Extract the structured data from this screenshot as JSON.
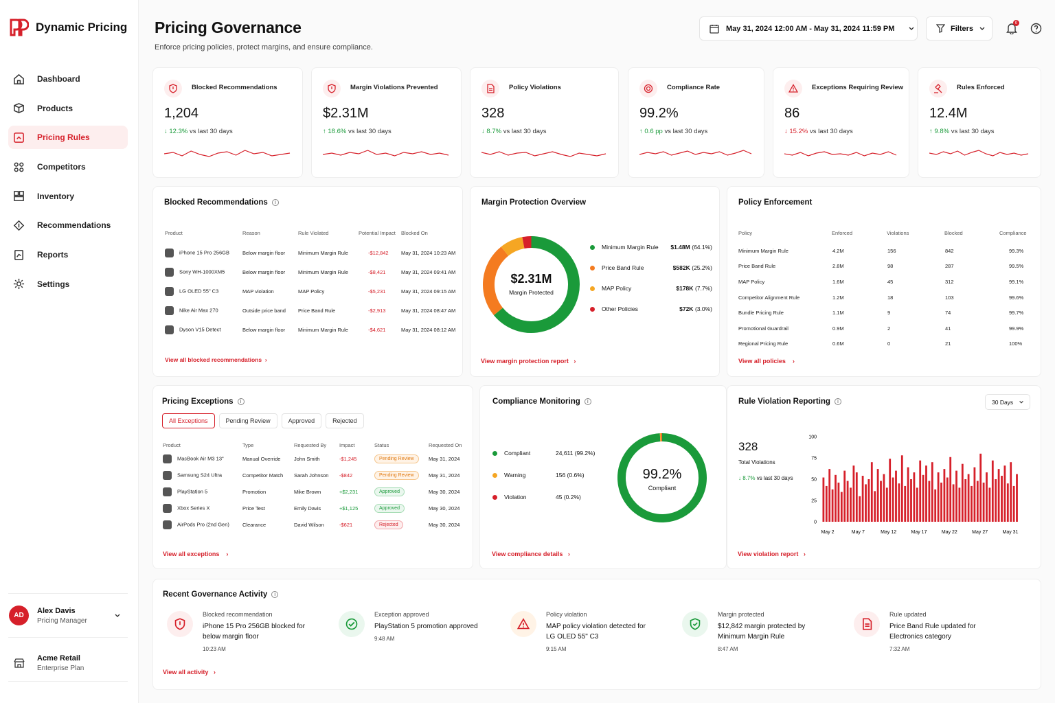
{
  "brand": {
    "name": "Dynamic Pricing"
  },
  "nav": [
    {
      "label": "Dashboard",
      "icon": "home-icon"
    },
    {
      "label": "Products",
      "icon": "box-icon"
    },
    {
      "label": "Pricing Rules",
      "icon": "rules-icon"
    },
    {
      "label": "Competitors",
      "icon": "competitors-icon"
    },
    {
      "label": "Inventory",
      "icon": "inventory-icon"
    },
    {
      "label": "Recommendations",
      "icon": "recommend-icon"
    },
    {
      "label": "Reports",
      "icon": "reports-icon"
    },
    {
      "label": "Settings",
      "icon": "gear-icon"
    }
  ],
  "user": {
    "initials": "AD",
    "name": "Alex Davis",
    "role": "Pricing Manager"
  },
  "org": {
    "name": "Acme Retail",
    "plan": "Enterprise Plan"
  },
  "header": {
    "title": "Pricing Governance",
    "subtitle": "Enforce pricing policies, protect margins, and ensure compliance.",
    "date_range": "May 31, 2024 12:00 AM - May 31, 2024 11:59 PM",
    "filters": "Filters",
    "notif_count": "0"
  },
  "colors": {
    "accent": "#d6202a",
    "green": "#1a9a3a",
    "orange": "#f39a1e"
  },
  "kpis": [
    {
      "label": "Blocked Recommendations",
      "value": "1,204",
      "delta": "12.3%",
      "suffix": "vs last 30 days",
      "dir": "down",
      "icon": "shield-icon"
    },
    {
      "label": "Margin Violations Prevented",
      "value": "$2.31M",
      "delta": "18.6%",
      "suffix": "vs last 30 days",
      "dir": "up",
      "icon": "shield-icon"
    },
    {
      "label": "Policy Violations",
      "value": "328",
      "delta": "8.7%",
      "suffix": "vs last 30 days",
      "dir": "down",
      "icon": "document-icon"
    },
    {
      "label": "Compliance Rate",
      "value": "99.2%",
      "delta": "0.6 pp",
      "suffix": "vs last 30 days",
      "dir": "up",
      "icon": "target-icon"
    },
    {
      "label": "Exceptions Requiring Review",
      "value": "86",
      "delta": "15.2%",
      "suffix": "vs last 30 days",
      "dir": "down",
      "icon": "warning-icon"
    },
    {
      "label": "Rules Enforced",
      "value": "12.4M",
      "delta": "9.8%",
      "suffix": "vs last 30 days",
      "dir": "up",
      "icon": "gavel-icon"
    }
  ],
  "blocked": {
    "title": "Blocked Recommendations",
    "headers": [
      "Product",
      "Reason",
      "Rule Violated",
      "Potential Impact",
      "Blocked On"
    ],
    "rows": [
      [
        "iPhone 15 Pro 256GB",
        "Below margin floor",
        "Minimum Margin Rule",
        "-$12,842",
        "May 31, 2024 10:23 AM"
      ],
      [
        "Sony WH-1000XM5",
        "Below margin floor",
        "Minimum Margin Rule",
        "-$8,421",
        "May 31, 2024 09:41 AM"
      ],
      [
        "LG OLED 55\" C3",
        "MAP violation",
        "MAP Policy",
        "-$5,231",
        "May 31, 2024 09:15 AM"
      ],
      [
        "Nike Air Max 270",
        "Outside price band",
        "Price Band Rule",
        "-$2,913",
        "May 31, 2024 08:47 AM"
      ],
      [
        "Dyson V15 Detect",
        "Below margin floor",
        "Minimum Margin Rule",
        "-$4,621",
        "May 31, 2024 08:12 AM"
      ]
    ],
    "link": "View all blocked recommendations"
  },
  "margin": {
    "title": "Margin Protection Overview",
    "center_value": "$2.31M",
    "center_label": "Margin Protected",
    "items": [
      {
        "name": "Minimum Margin Rule",
        "value": "$1.48M",
        "pct": "(64.1%)",
        "share": 64.1,
        "color": "#1a9a3a"
      },
      {
        "name": "Price Band Rule",
        "value": "$582K",
        "pct": "(25.2%)",
        "share": 25.2,
        "color": "#f47b20"
      },
      {
        "name": "MAP Policy",
        "value": "$178K",
        "pct": "(7.7%)",
        "share": 7.7,
        "color": "#f5a623"
      },
      {
        "name": "Other Policies",
        "value": "$72K",
        "pct": "(3.0%)",
        "share": 3.0,
        "color": "#d6202a"
      }
    ],
    "link": "View margin protection report"
  },
  "policy": {
    "title": "Policy Enforcement",
    "headers": [
      "Policy",
      "Enforced",
      "Violations",
      "Blocked",
      "Compliance"
    ],
    "rows": [
      [
        "Minimum Margin Rule",
        "4.2M",
        "156",
        "842",
        "99.3%"
      ],
      [
        "Price Band Rule",
        "2.8M",
        "98",
        "287",
        "99.5%"
      ],
      [
        "MAP Policy",
        "1.6M",
        "45",
        "312",
        "99.1%"
      ],
      [
        "Competitor Alignment Rule",
        "1.2M",
        "18",
        "103",
        "99.6%"
      ],
      [
        "Bundle Pricing Rule",
        "1.1M",
        "9",
        "74",
        "99.7%"
      ],
      [
        "Promotional Guardrail",
        "0.9M",
        "2",
        "41",
        "99.9%"
      ],
      [
        "Regional Pricing Rule",
        "0.6M",
        "0",
        "21",
        "100%"
      ]
    ],
    "link": "View all policies"
  },
  "exceptions": {
    "title": "Pricing Exceptions",
    "tabs": [
      "All Exceptions",
      "Pending Review",
      "Approved",
      "Rejected"
    ],
    "headers": [
      "Product",
      "Type",
      "Requested By",
      "Impact",
      "Status",
      "Requested On"
    ],
    "rows": [
      [
        "MacBook Air M3 13\"",
        "Manual Override",
        "John Smith",
        "-$1,245",
        "Pending Review",
        "May 31, 2024"
      ],
      [
        "Samsung S24 Ultra",
        "Competitor Match",
        "Sarah Johnson",
        "-$842",
        "Pending Review",
        "May 31, 2024"
      ],
      [
        "PlayStation 5",
        "Promotion",
        "Mike Brown",
        "+$2,231",
        "Approved",
        "May 30, 2024"
      ],
      [
        "Xbox Series X",
        "Price Test",
        "Emily Davis",
        "+$1,125",
        "Approved",
        "May 30, 2024"
      ],
      [
        "AirPods Pro (2nd Gen)",
        "Clearance",
        "David Wilson",
        "-$621",
        "Rejected",
        "May 30, 2024"
      ]
    ],
    "link": "View all exceptions"
  },
  "compliance": {
    "title": "Compliance Monitoring",
    "center_value": "99.2%",
    "center_label": "Compliant",
    "items": [
      {
        "name": "Compliant",
        "value": "24,611 (99.2%)",
        "share": 99.2,
        "color": "#1a9a3a"
      },
      {
        "name": "Warning",
        "value": "156 (0.6%)",
        "share": 0.6,
        "color": "#f5a623"
      },
      {
        "name": "Violation",
        "value": "45 (0.2%)",
        "share": 0.2,
        "color": "#d6202a"
      }
    ],
    "link": "View compliance details"
  },
  "violations": {
    "title": "Rule Violation Reporting",
    "range": "30 Days",
    "total": "328",
    "total_label": "Total Violations",
    "delta": "8.7%",
    "delta_suffix": "vs last 30 days",
    "link": "View violation report"
  },
  "chart_data": {
    "type": "bar",
    "x_ticks": [
      "May 2",
      "May 7",
      "May 12",
      "May 17",
      "May 22",
      "May 27",
      "May 31"
    ],
    "y_ticks": [
      "0",
      "25",
      "50",
      "75",
      "100"
    ],
    "ylim": [
      0,
      100
    ],
    "values": [
      52,
      42,
      62,
      38,
      55,
      46,
      35,
      60,
      48,
      40,
      66,
      58,
      30,
      54,
      44,
      50,
      70,
      36,
      62,
      48,
      56,
      40,
      74,
      52,
      60,
      45,
      78,
      42,
      64,
      50,
      58,
      40,
      72,
      55,
      66,
      48,
      70,
      38,
      58,
      46,
      62,
      52,
      76,
      44,
      60,
      40,
      68,
      50,
      56,
      42,
      64,
      48,
      80,
      46,
      58,
      40,
      72,
      50,
      62,
      54,
      66,
      45,
      70,
      42,
      56
    ]
  },
  "activity": {
    "title": "Recent Governance Activity",
    "link": "View all activity",
    "items": [
      {
        "type": "Blocked recommendation",
        "desc": "iPhone 15 Pro 256GB blocked for below margin floor",
        "time": "10:23 AM",
        "icon": "shield-icon"
      },
      {
        "type": "Exception approved",
        "desc": "PlayStation 5 promotion approved",
        "time": "9:48 AM",
        "icon": "check-icon"
      },
      {
        "type": "Policy violation",
        "desc": "MAP policy violation detected for LG OLED 55\" C3",
        "time": "9:15 AM",
        "icon": "warning-icon"
      },
      {
        "type": "Margin protected",
        "desc": "$12,842 margin protected by Minimum Margin Rule",
        "time": "8:47 AM",
        "icon": "shield-check-icon"
      },
      {
        "type": "Rule updated",
        "desc": "Price Band Rule updated for Electronics category",
        "time": "7:32 AM",
        "icon": "document-icon"
      }
    ]
  }
}
